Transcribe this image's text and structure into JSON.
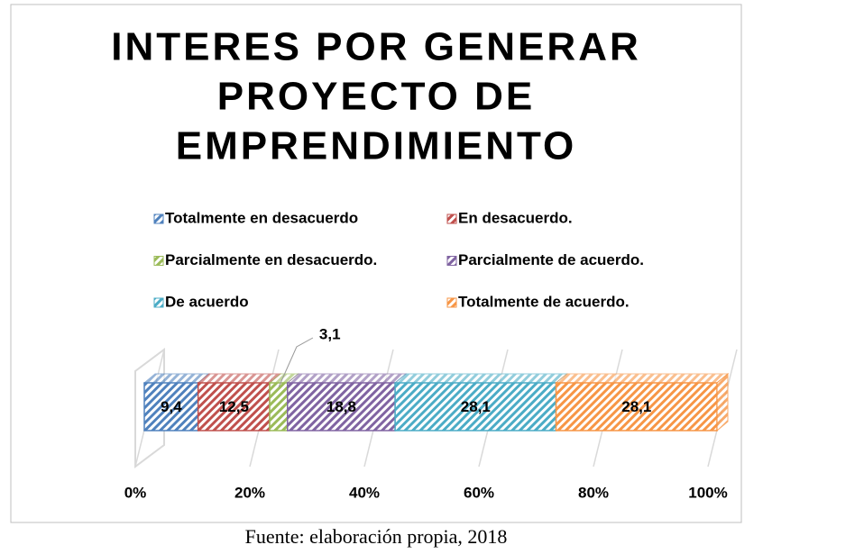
{
  "chart_data": {
    "type": "stacked-bar-horizontal",
    "title": [
      "INTERES POR GENERAR",
      "PROYECTO DE",
      "EMPRENDIMIENTO"
    ],
    "categories": [
      null
    ],
    "series": [
      {
        "name": "Totalmente en desacuerdo",
        "color": "#4f81bd",
        "values": [
          9.4
        ],
        "value_labels": [
          "9,4"
        ]
      },
      {
        "name": "En desacuerdo.",
        "color": "#c0504d",
        "values": [
          12.5
        ],
        "value_labels": [
          "12,5"
        ]
      },
      {
        "name": "Parcialmente en desacuerdo.",
        "color": "#9bbb59",
        "values": [
          3.1
        ],
        "value_labels": [
          "3,1"
        ]
      },
      {
        "name": "Parcialmente de acuerdo.",
        "color": "#8064a2",
        "values": [
          18.8
        ],
        "value_labels": [
          "18,8"
        ]
      },
      {
        "name": "De acuerdo",
        "color": "#4bacc6",
        "values": [
          28.1
        ],
        "value_labels": [
          "28,1"
        ]
      },
      {
        "name": "Totalmente de acuerdo.",
        "color": "#f79646",
        "values": [
          28.1
        ],
        "value_labels": [
          "28,1"
        ]
      }
    ],
    "xlim": [
      0,
      100
    ],
    "xticks": [
      {
        "value": 0,
        "label": "0%"
      },
      {
        "value": 20,
        "label": "20%"
      },
      {
        "value": 40,
        "label": "40%"
      },
      {
        "value": 60,
        "label": "60%"
      },
      {
        "value": 80,
        "label": "80%"
      },
      {
        "value": 100,
        "label": "100%"
      }
    ],
    "grid": true,
    "legend": "top",
    "source": "Fuente: elaboración propia, 2018"
  }
}
